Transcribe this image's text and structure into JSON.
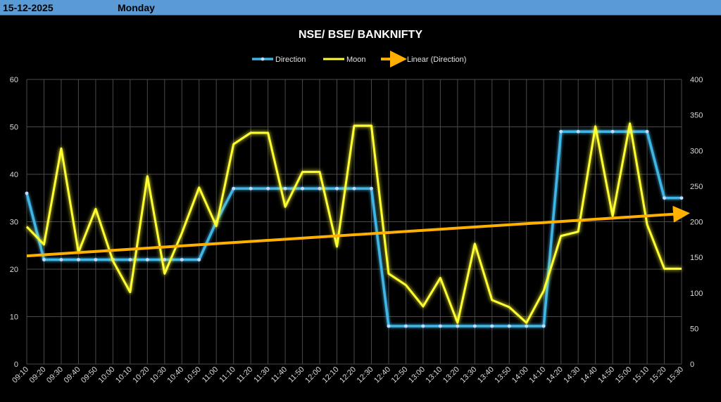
{
  "header": {
    "date": "15-12-2025",
    "day": "Monday"
  },
  "colors": {
    "direction": "#41b6e6",
    "moon": "#ffff33",
    "trend": "#ffb000",
    "header_bg": "#5b9bd5"
  },
  "chart_data": {
    "type": "line",
    "title": "NSE/ BSE/ BANKNIFTY",
    "legend": {
      "position": "top",
      "entries": [
        "Direction",
        "Moon",
        "Linear (Direction)"
      ]
    },
    "grid": true,
    "x": [
      "09:10",
      "09:20",
      "09:30",
      "09:40",
      "09:50",
      "10:00",
      "10:10",
      "10:20",
      "10:30",
      "10:40",
      "10:50",
      "11:00",
      "11:10",
      "11:20",
      "11:30",
      "11:40",
      "11:50",
      "12:00",
      "12:10",
      "12:20",
      "12:30",
      "12:40",
      "12:50",
      "13:00",
      "13:10",
      "13:20",
      "13:30",
      "13:40",
      "13:50",
      "14:00",
      "14:10",
      "14:20",
      "14:30",
      "14:40",
      "14:50",
      "15:00",
      "15:10",
      "15:20",
      "15:30"
    ],
    "y_left": {
      "min": 0,
      "max": 60,
      "step": 10,
      "ticks": [
        "0",
        "10",
        "20",
        "30",
        "40",
        "50",
        "60"
      ]
    },
    "y_right": {
      "min": 0,
      "max": 400,
      "step": 50,
      "ticks": [
        "0",
        "50",
        "100",
        "150",
        "200",
        "250",
        "300",
        "350",
        "400"
      ]
    },
    "series": [
      {
        "name": "Direction",
        "axis": "left",
        "values": [
          36,
          22,
          22,
          22,
          22,
          22,
          22,
          22,
          22,
          22,
          22,
          30,
          37,
          37,
          37,
          37,
          37,
          37,
          37,
          37,
          37,
          8,
          8,
          8,
          8,
          8,
          8,
          8,
          8,
          8,
          8,
          49,
          49,
          49,
          49,
          49,
          49,
          35,
          35
        ]
      },
      {
        "name": "Moon",
        "axis": "right",
        "values": [
          193,
          168,
          303,
          157,
          218,
          145,
          101,
          264,
          127,
          184,
          248,
          194,
          309,
          325,
          325,
          221,
          270,
          270,
          165,
          335,
          335,
          127,
          111,
          81,
          121,
          58,
          169,
          90,
          80,
          58,
          103,
          180,
          186,
          334,
          208,
          338,
          196,
          134,
          134
        ]
      },
      {
        "name": "Linear (Direction)",
        "axis": "left",
        "trendline": true,
        "from": 22.8,
        "to": 31.7
      }
    ]
  }
}
